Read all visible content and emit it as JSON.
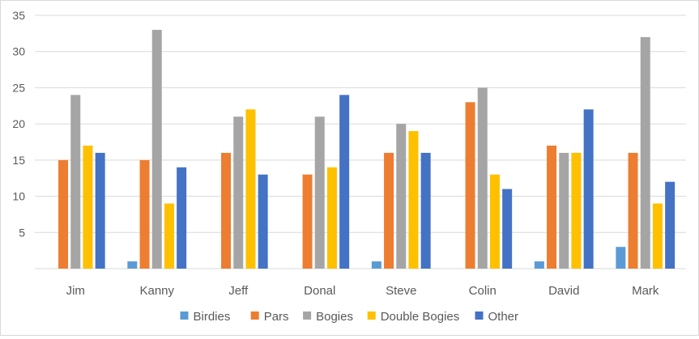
{
  "chart_data": {
    "type": "bar",
    "categories": [
      "Jim",
      "Kanny",
      "Jeff",
      "Donal",
      "Steve",
      "Colin",
      "David",
      "Mark"
    ],
    "series": [
      {
        "name": "Birdies",
        "color": "#5B9BD5",
        "values": [
          0,
          1,
          0,
          0,
          1,
          0,
          1,
          3
        ]
      },
      {
        "name": "Pars",
        "color": "#ED7D31",
        "values": [
          15,
          15,
          16,
          13,
          16,
          23,
          17,
          16
        ]
      },
      {
        "name": "Bogies",
        "color": "#A5A5A5",
        "values": [
          24,
          33,
          21,
          21,
          20,
          25,
          16,
          32
        ]
      },
      {
        "name": "Double Bogies",
        "color": "#FFC000",
        "values": [
          17,
          9,
          22,
          14,
          19,
          13,
          16,
          9
        ]
      },
      {
        "name": "Other",
        "color": "#4472C4",
        "values": [
          16,
          14,
          13,
          24,
          16,
          11,
          22,
          12
        ]
      }
    ],
    "y_ticks": [
      "5",
      "10",
      "15",
      "20",
      "25",
      "30",
      "35"
    ],
    "ylim": [
      0,
      35
    ],
    "grid": true,
    "legend_position": "bottom",
    "title": "",
    "xlabel": "",
    "ylabel": ""
  }
}
